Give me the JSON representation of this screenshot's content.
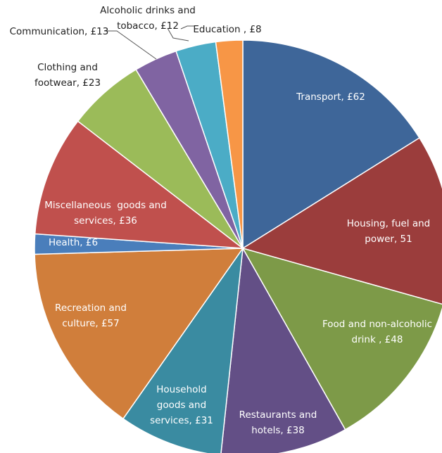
{
  "chart_data": {
    "type": "pie",
    "start_angle_deg": 0,
    "direction": "clockwise",
    "slices": [
      {
        "name": "Transport",
        "value": 62,
        "color": "#3E6699",
        "label_lines": [
          "Transport, £62"
        ],
        "label_color": "#ffffff"
      },
      {
        "name": "Housing, fuel and power",
        "value": 51,
        "color": "#9B3D3C",
        "label_lines": [
          "Housing, fuel and",
          "power, 51"
        ],
        "label_color": "#ffffff"
      },
      {
        "name": "Food and non-alcoholic drink",
        "value": 48,
        "color": "#7D9A48",
        "label_lines": [
          "Food and non-alcoholic",
          "drink , £48"
        ],
        "label_color": "#ffffff"
      },
      {
        "name": "Restaurants and hotels",
        "value": 38,
        "color": "#634F86",
        "label_lines": [
          "Restaurants and",
          "hotels, £38"
        ],
        "label_color": "#ffffff"
      },
      {
        "name": "Household goods and services",
        "value": 31,
        "color": "#3A8BA1",
        "label_lines": [
          "Household",
          "goods and",
          "services, £31"
        ],
        "label_color": "#ffffff"
      },
      {
        "name": "Recreation and culture",
        "value": 57,
        "color": "#D07E3B",
        "label_lines": [
          "Recreation and",
          "culture, £57"
        ],
        "label_color": "#ffffff"
      },
      {
        "name": "Health",
        "value": 6,
        "color": "#4A7EBB",
        "label_lines": [
          "Health, £6"
        ],
        "label_color": "#ffffff"
      },
      {
        "name": "Miscellaneous goods and services",
        "value": 36,
        "color": "#C0504D",
        "label_lines": [
          "Miscellaneous  goods and",
          "services, £36"
        ],
        "label_color": "#ffffff"
      },
      {
        "name": "Clothing and footwear",
        "value": 23,
        "color": "#9BBB59",
        "label_lines": [
          "Clothing and",
          "footwear, £23"
        ],
        "label_color": "#222222"
      },
      {
        "name": "Communication",
        "value": 13,
        "color": "#8064A2",
        "label_lines": [
          "Communication, £13"
        ],
        "label_color": "#222222"
      },
      {
        "name": "Alcoholic drinks and tobacco",
        "value": 12,
        "color": "#4BACC6",
        "label_lines": [
          "Alcoholic drinks and",
          "tobacco, £12"
        ],
        "label_color": "#222222"
      },
      {
        "name": "Education",
        "value": 8,
        "color": "#F79646",
        "label_lines": [
          "Education , £8"
        ],
        "label_color": "#222222"
      }
    ]
  }
}
